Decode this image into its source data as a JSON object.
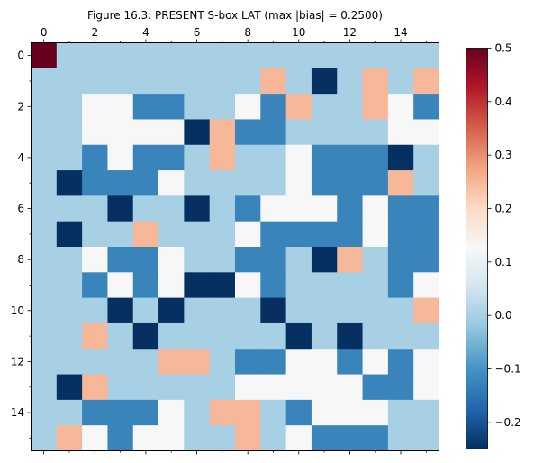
{
  "chart_data": {
    "type": "heatmap",
    "title": "Figure 16.3: PRESENT S-box LAT (max |bias| = 0.2500)",
    "colormap": "RdBu_r",
    "rows": 16,
    "cols": 16,
    "x_ticks": [
      "0",
      "2",
      "4",
      "6",
      "8",
      "10",
      "12",
      "14"
    ],
    "y_ticks": [
      "0",
      "2",
      "4",
      "6",
      "8",
      "10",
      "12",
      "14"
    ],
    "values": [
      [
        0.5,
        0,
        0,
        0,
        0,
        0,
        0,
        0,
        0,
        0,
        0,
        0,
        0,
        0,
        0,
        0
      ],
      [
        0,
        0,
        0,
        0,
        0,
        0,
        0,
        0,
        0,
        0.25,
        0,
        -0.25,
        0,
        0.25,
        0,
        0.25
      ],
      [
        0,
        0,
        0.125,
        0.125,
        -0.125,
        -0.125,
        0,
        0,
        0.125,
        -0.125,
        0.25,
        0,
        0,
        0.25,
        0.125,
        -0.125
      ],
      [
        0,
        0,
        0.125,
        0.125,
        0.125,
        0.125,
        -0.25,
        0.25,
        -0.125,
        -0.125,
        0,
        0,
        0,
        0,
        0.125,
        0.125
      ],
      [
        0,
        0,
        -0.125,
        0.125,
        -0.125,
        -0.125,
        0,
        0.25,
        0,
        0,
        0.125,
        -0.125,
        -0.125,
        -0.125,
        -0.25,
        0
      ],
      [
        0,
        -0.25,
        -0.125,
        -0.125,
        -0.125,
        0.125,
        0,
        0,
        0,
        0,
        0.125,
        -0.125,
        -0.125,
        -0.125,
        0.25,
        0
      ],
      [
        0,
        0,
        0,
        -0.25,
        0,
        0,
        -0.25,
        0,
        -0.125,
        0.125,
        0.125,
        0.125,
        -0.125,
        0.125,
        -0.125,
        -0.125
      ],
      [
        0,
        -0.25,
        0,
        0,
        0.25,
        0,
        0,
        0,
        0.125,
        -0.125,
        -0.125,
        -0.125,
        -0.125,
        0.125,
        -0.125,
        -0.125
      ],
      [
        0,
        0,
        0.125,
        -0.125,
        -0.125,
        0.125,
        0,
        0,
        -0.125,
        -0.125,
        0,
        -0.25,
        0.25,
        0,
        -0.125,
        -0.125
      ],
      [
        0,
        0,
        -0.125,
        0.125,
        -0.125,
        0.125,
        -0.25,
        -0.25,
        0.125,
        -0.125,
        0,
        0,
        0,
        0,
        -0.125,
        0.125
      ],
      [
        0,
        0,
        0,
        -0.25,
        0,
        -0.25,
        0,
        0,
        0,
        -0.25,
        0,
        0,
        0,
        0,
        0,
        0.25
      ],
      [
        0,
        0,
        0.25,
        0,
        -0.25,
        0,
        0,
        0,
        0,
        0,
        -0.25,
        0,
        -0.25,
        0,
        0,
        0
      ],
      [
        0,
        0,
        0,
        0,
        0,
        0.25,
        0.25,
        0,
        -0.125,
        -0.125,
        0.125,
        0.125,
        -0.125,
        0.125,
        -0.125,
        0.125
      ],
      [
        0,
        -0.25,
        0.25,
        0,
        0,
        0,
        0,
        0,
        0.125,
        0.125,
        0.125,
        0.125,
        0.125,
        -0.125,
        -0.125,
        0.125
      ],
      [
        0,
        0,
        -0.125,
        -0.125,
        -0.125,
        0.125,
        0,
        0.25,
        0.25,
        0,
        -0.125,
        0.125,
        0.125,
        0.125,
        0,
        0
      ],
      [
        0,
        0.25,
        0.125,
        -0.125,
        0.125,
        0.125,
        0,
        0,
        0.25,
        0,
        0.125,
        -0.125,
        -0.125,
        -0.125,
        0,
        0
      ]
    ],
    "colorbar": {
      "min": -0.25,
      "max": 0.5,
      "ticks": [
        "0.5",
        "0.4",
        "0.3",
        "0.2",
        "0.1",
        "0.0",
        "−0.1",
        "−0.2"
      ],
      "tick_values": [
        0.5,
        0.4,
        0.3,
        0.2,
        0.1,
        0.0,
        -0.1,
        -0.2
      ]
    }
  }
}
